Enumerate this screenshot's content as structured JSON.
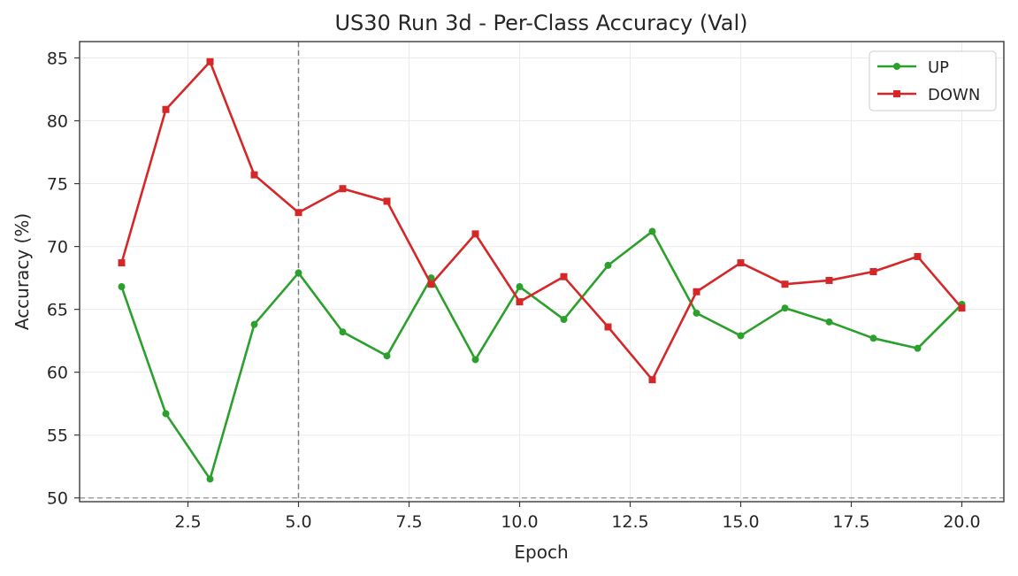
{
  "chart_data": {
    "type": "line",
    "title": "US30 Run 3d - Per-Class Accuracy (Val)",
    "xlabel": "Epoch",
    "ylabel": "Accuracy (%)",
    "x": [
      1,
      2,
      3,
      4,
      5,
      6,
      7,
      8,
      9,
      10,
      11,
      12,
      13,
      14,
      15,
      16,
      17,
      18,
      19,
      20
    ],
    "xlim": [
      0.05,
      20.95
    ],
    "ylim": [
      49.7,
      86.3
    ],
    "xticks": [
      2.5,
      5.0,
      7.5,
      10.0,
      12.5,
      15.0,
      17.5,
      20.0
    ],
    "xtick_labels": [
      "2.5",
      "5.0",
      "7.5",
      "10.0",
      "12.5",
      "15.0",
      "17.5",
      "20.0"
    ],
    "yticks": [
      50,
      55,
      60,
      65,
      70,
      75,
      80,
      85
    ],
    "ytick_labels": [
      "50",
      "55",
      "60",
      "65",
      "70",
      "75",
      "80",
      "85"
    ],
    "grid": true,
    "legend_position": "top-right",
    "series": [
      {
        "name": "UP",
        "color": "#2ca02c",
        "marker": "circle",
        "values": [
          66.8,
          56.7,
          51.5,
          63.8,
          67.9,
          63.2,
          61.3,
          67.5,
          61.0,
          66.8,
          64.2,
          68.5,
          71.2,
          64.7,
          62.9,
          65.1,
          64.0,
          62.7,
          61.9,
          65.4
        ]
      },
      {
        "name": "DOWN",
        "color": "#d62728",
        "marker": "square",
        "values": [
          68.7,
          80.9,
          84.7,
          75.7,
          72.7,
          74.6,
          73.6,
          67.0,
          71.0,
          65.6,
          67.6,
          63.6,
          59.4,
          66.4,
          68.7,
          67.0,
          67.3,
          68.0,
          69.2,
          65.1
        ]
      }
    ],
    "reference_lines": [
      {
        "orientation": "vertical",
        "value": 5.0,
        "style": "dashed",
        "color": "#808080"
      },
      {
        "orientation": "horizontal",
        "value": 50.0,
        "style": "dashed",
        "color": "#a0a0a0"
      }
    ]
  }
}
